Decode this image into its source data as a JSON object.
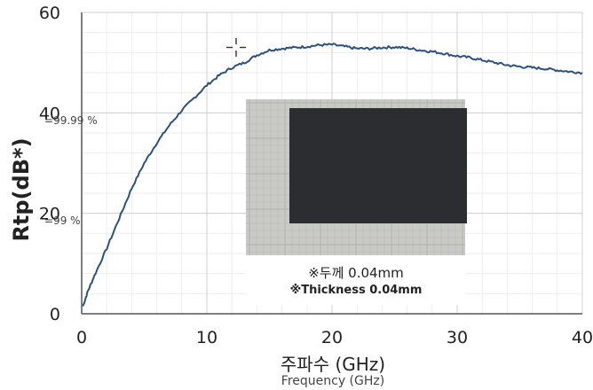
{
  "chart_data": {
    "type": "line",
    "ylabel": "Rtp(dB*)",
    "xlabel": "주파수 (GHz)",
    "xlabel_sub": "Frequency (GHz)",
    "xlim": [
      0,
      40
    ],
    "ylim": [
      0,
      60
    ],
    "x_ticks": [
      "0",
      "10",
      "20",
      "30",
      "40"
    ],
    "y_ticks": [
      "0",
      "20",
      "40",
      "60"
    ],
    "grid": true,
    "annotations": [
      {
        "text": "=99.99 %",
        "y": 38.5
      },
      {
        "text": "=99 %",
        "y": 18.5
      }
    ],
    "inset_caption": [
      "※두께 0.04mm",
      "※Thickness 0.04mm"
    ],
    "series": [
      {
        "color": "#2c5282",
        "x": [
          0.1,
          0.5,
          1,
          2,
          3,
          4,
          5,
          6,
          7,
          8,
          9,
          10,
          11,
          12,
          13,
          14,
          15,
          16,
          17,
          18,
          19,
          20,
          21,
          22,
          23,
          24,
          25,
          26,
          27,
          28,
          29,
          30,
          31,
          32,
          33,
          34,
          35,
          36,
          37,
          38,
          39,
          40
        ],
        "y": [
          1.5,
          4.5,
          7.5,
          13,
          19,
          25,
          30,
          34,
          37.5,
          40.5,
          43,
          45.5,
          47.5,
          49,
          50,
          51.5,
          52.5,
          52.8,
          53,
          53.2,
          53.5,
          53.6,
          53.2,
          52.8,
          52.8,
          53,
          53.1,
          52.9,
          52.5,
          52.2,
          51.8,
          51.3,
          51,
          50.5,
          50,
          49.5,
          49.2,
          49,
          48.8,
          48.5,
          48.2,
          48
        ]
      }
    ]
  }
}
